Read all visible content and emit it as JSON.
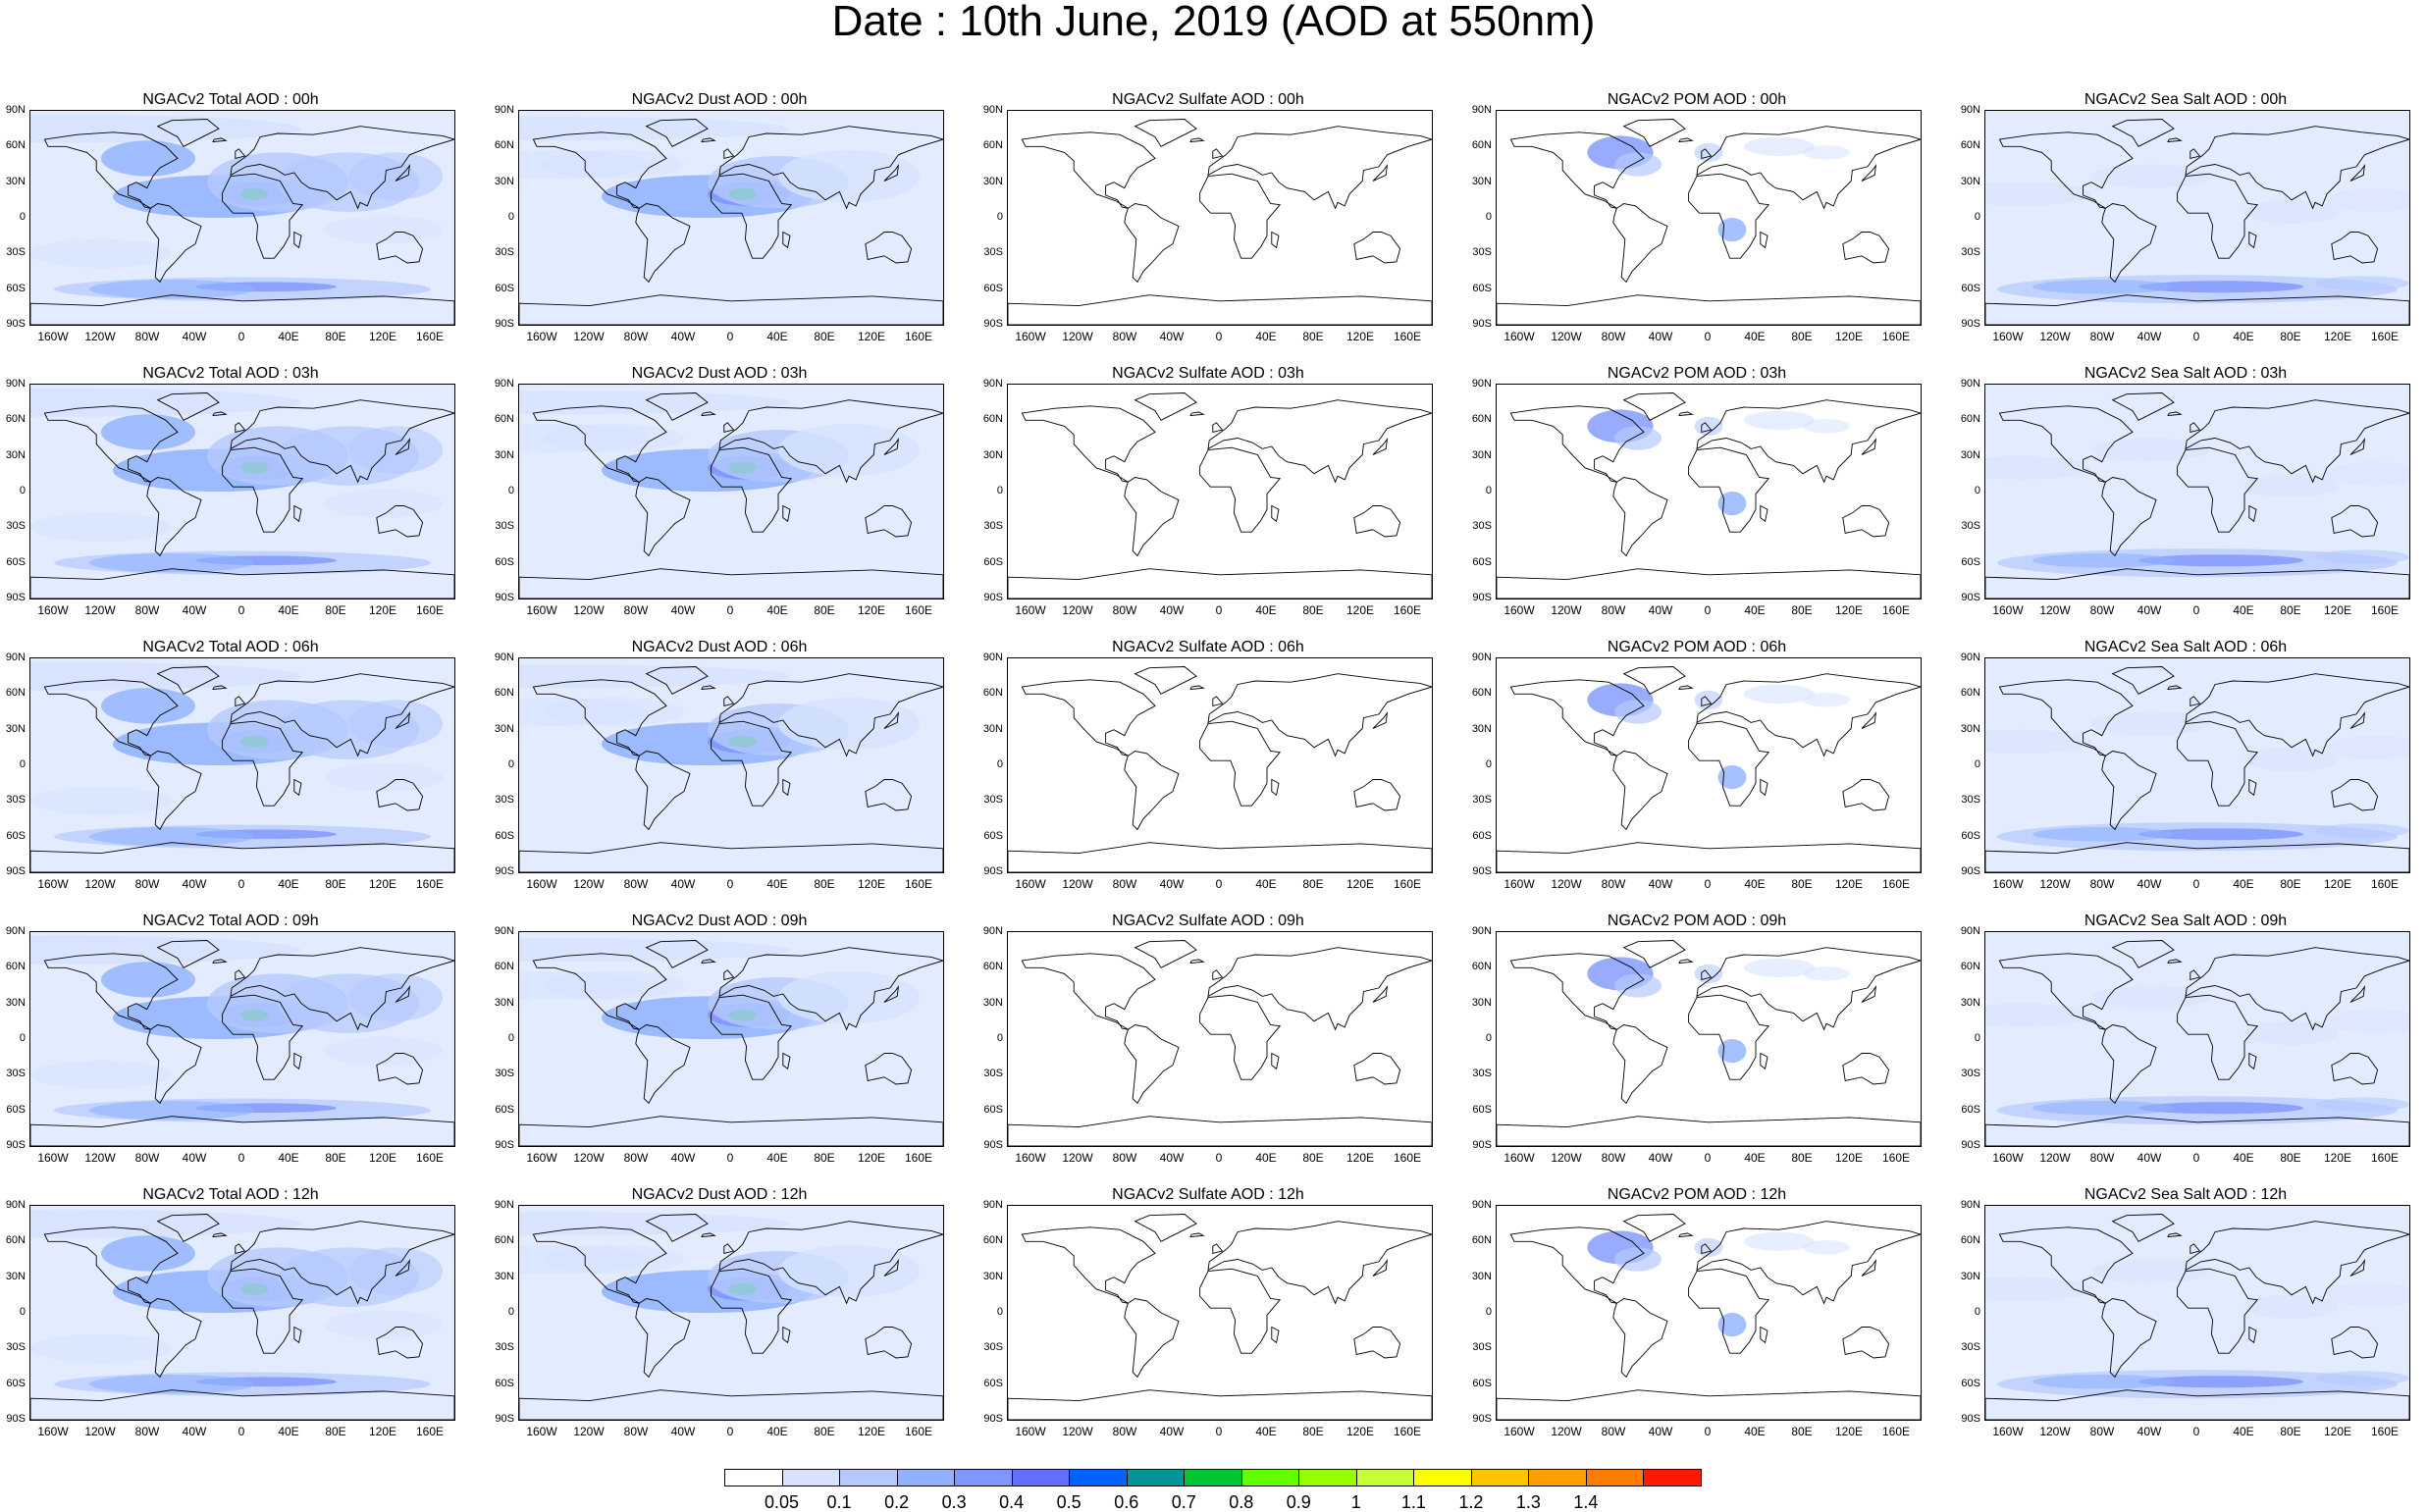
{
  "title": "Date : 10th June, 2019 (AOD at 550nm)",
  "axes": {
    "lat_labels": [
      "90N",
      "60N",
      "30N",
      "0",
      "30S",
      "60S",
      "90S"
    ],
    "lon_labels": [
      "160W",
      "120W",
      "80W",
      "40W",
      "0",
      "40E",
      "80E",
      "120E",
      "160E"
    ]
  },
  "columns": [
    {
      "key": "total",
      "color": "#a9c1fb"
    },
    {
      "key": "dust",
      "color": "#a9c1fb"
    },
    {
      "key": "sulfate",
      "color": "#ffffff"
    },
    {
      "key": "pom",
      "color": "#c9d8fc"
    },
    {
      "key": "seasalt",
      "color": "#c9d8fc"
    }
  ],
  "panels": [
    [
      "NGACv2 Total AOD : 00h",
      "NGACv2 Dust AOD : 00h",
      "NGACv2 Sulfate AOD : 00h",
      "NGACv2 POM AOD : 00h",
      "NGACv2 Sea Salt AOD : 00h"
    ],
    [
      "NGACv2 Total AOD : 03h",
      "NGACv2 Dust AOD : 03h",
      "NGACv2 Sulfate AOD : 03h",
      "NGACv2 POM AOD : 03h",
      "NGACv2 Sea Salt AOD : 03h"
    ],
    [
      "NGACv2 Total AOD : 06h",
      "NGACv2 Dust AOD : 06h",
      "NGACv2 Sulfate AOD : 06h",
      "NGACv2 POM AOD : 06h",
      "NGACv2 Sea Salt AOD : 06h"
    ],
    [
      "NGACv2 Total AOD : 09h",
      "NGACv2 Dust AOD : 09h",
      "NGACv2 Sulfate AOD : 09h",
      "NGACv2 POM AOD : 09h",
      "NGACv2 Sea Salt  AOD : 09h"
    ],
    [
      "NGACv2 Total AOD  : 12h",
      "NGACv2 Dust AOD : 12h",
      "NGACv2 Sulfate AOD : 12h",
      "NGACv2 POM  AOD : 12h",
      "NGACv2 Sea Salt AOD : 12h"
    ]
  ],
  "colorbar": {
    "labels": [
      "0.05",
      "0.1",
      "0.2",
      "0.3",
      "0.4",
      "0.5",
      "0.6",
      "0.7",
      "0.8",
      "0.9",
      "1",
      "1.1",
      "1.2",
      "1.3",
      "1.4"
    ],
    "colors": [
      "#ffffff",
      "#d6e2ff",
      "#b5c9ff",
      "#8eb2ff",
      "#7f96ff",
      "#6370ff",
      "#0063ff",
      "#009696",
      "#00c633",
      "#63ff00",
      "#96ff00",
      "#c6ff33",
      "#ffff00",
      "#ffc600",
      "#ffa000",
      "#ff7c00",
      "#ff1900"
    ]
  }
}
